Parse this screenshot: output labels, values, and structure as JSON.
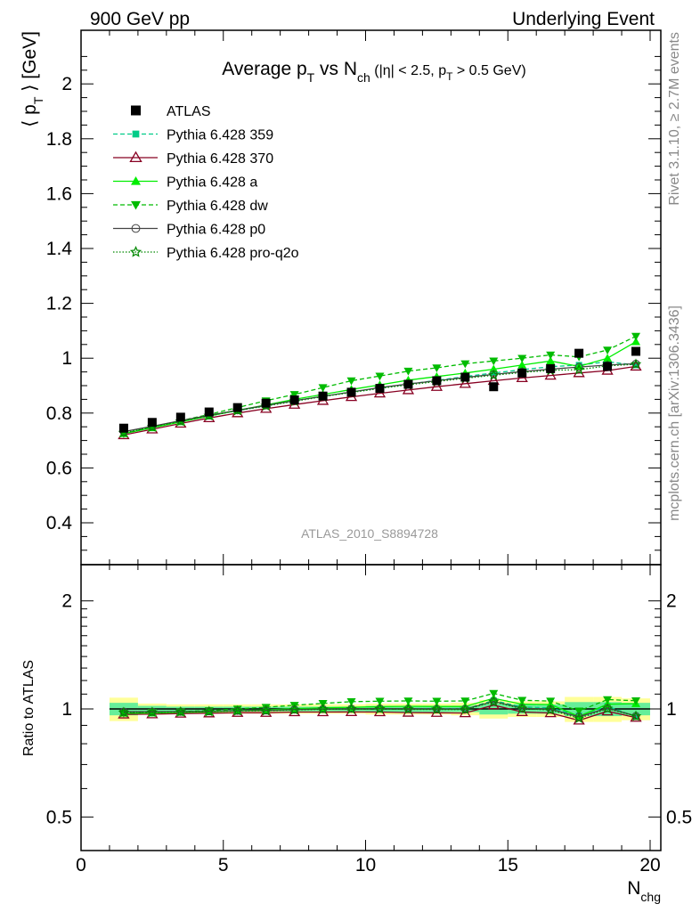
{
  "header": {
    "left": "900 GeV pp",
    "right": "Underlying Event"
  },
  "side": {
    "rivet": "Rivet 3.1.10, ≥ 2.7M events",
    "mcplots": "mcplots.cern.ch [arXiv:1306.3436]"
  },
  "chart_data": [
    {
      "type": "scatter",
      "panel": "main",
      "title": {
        "main": "Average p",
        "sub1": "T",
        "mid": " vs N",
        "sub2": "ch",
        "cond1": " (|η| < 2.5, p",
        "sub3": "T",
        "cond2": " > 0.5 GeV)"
      },
      "ylabel": {
        "pre": "⟨ p",
        "sub": "T",
        "post": " ⟩ [GeV]"
      },
      "ylim": [
        0.25,
        2.2
      ],
      "xlim": [
        0,
        20
      ],
      "yticks": [
        "0.4",
        "0.6",
        "0.8",
        "1",
        "1.2",
        "1.4",
        "1.6",
        "1.8",
        "2"
      ],
      "watermark": "ATLAS_2010_S8894728",
      "legend_position": "top-left",
      "x": [
        1.5,
        2.5,
        3.5,
        4.5,
        5.5,
        6.5,
        7.5,
        8.5,
        9.5,
        10.5,
        11.5,
        12.5,
        13.5,
        14.5,
        15.5,
        16.5,
        17.5,
        18.5,
        19.5
      ],
      "series": [
        {
          "name": "ATLAS",
          "color": "#000000",
          "marker": "square",
          "line": "none",
          "values": [
            0.745,
            0.766,
            0.785,
            0.804,
            0.82,
            0.836,
            0.848,
            0.862,
            0.876,
            0.89,
            0.905,
            0.918,
            0.931,
            0.896,
            0.946,
            0.962,
            1.018,
            0.97,
            1.025
          ]
        },
        {
          "name": "Pythia 6.428 359",
          "color": "#00cc88",
          "marker": "smallsquare",
          "line": "dashed",
          "values": [
            0.725,
            0.748,
            0.769,
            0.79,
            0.809,
            0.827,
            0.845,
            0.861,
            0.877,
            0.892,
            0.906,
            0.919,
            0.933,
            0.946,
            0.958,
            0.969,
            0.975,
            0.987,
            0.975
          ]
        },
        {
          "name": "Pythia 6.428 370",
          "color": "#880022",
          "marker": "triangle-open",
          "line": "solid",
          "values": [
            0.72,
            0.741,
            0.762,
            0.782,
            0.8,
            0.816,
            0.831,
            0.845,
            0.859,
            0.872,
            0.884,
            0.896,
            0.907,
            0.918,
            0.928,
            0.937,
            0.946,
            0.955,
            0.97
          ]
        },
        {
          "name": "Pythia 6.428 a",
          "color": "#00ee00",
          "marker": "triangle",
          "line": "solid",
          "values": [
            0.725,
            0.746,
            0.768,
            0.789,
            0.81,
            0.83,
            0.85,
            0.868,
            0.886,
            0.903,
            0.92,
            0.933,
            0.946,
            0.96,
            0.975,
            0.99,
            0.97,
            1.0,
            1.06
          ]
        },
        {
          "name": "Pythia 6.428 dw",
          "color": "#00bb00",
          "marker": "triangle-down",
          "line": "dashed",
          "values": [
            0.725,
            0.75,
            0.772,
            0.795,
            0.82,
            0.845,
            0.868,
            0.893,
            0.918,
            0.935,
            0.953,
            0.965,
            0.98,
            0.99,
            1.0,
            1.012,
            1.005,
            1.03,
            1.08
          ]
        },
        {
          "name": "Pythia 6.428 p0",
          "color": "#444444",
          "marker": "circle-open",
          "line": "solid",
          "values": [
            0.732,
            0.752,
            0.772,
            0.792,
            0.81,
            0.828,
            0.845,
            0.861,
            0.877,
            0.893,
            0.906,
            0.918,
            0.93,
            0.941,
            0.951,
            0.96,
            0.968,
            0.975,
            0.98
          ]
        },
        {
          "name": "Pythia 6.428 pro-q2o",
          "color": "#008800",
          "marker": "star-open",
          "line": "dotted",
          "values": [
            0.728,
            0.749,
            0.77,
            0.79,
            0.809,
            0.826,
            0.843,
            0.86,
            0.875,
            0.89,
            0.903,
            0.915,
            0.927,
            0.938,
            0.948,
            0.956,
            0.958,
            0.972,
            0.978
          ]
        }
      ]
    },
    {
      "type": "scatter",
      "panel": "ratio",
      "ylabel": "Ratio to ATLAS",
      "xlabel": {
        "main": "N",
        "sub": "chg"
      },
      "ylog": true,
      "ylim": [
        0.4,
        2.4
      ],
      "xlim": [
        0,
        20
      ],
      "xticks": [
        "0",
        "5",
        "10",
        "15",
        "20"
      ],
      "yticks": [
        "0.5",
        "1",
        "2"
      ],
      "x": [
        1.5,
        2.5,
        3.5,
        4.5,
        5.5,
        6.5,
        7.5,
        8.5,
        9.5,
        10.5,
        11.5,
        12.5,
        13.5,
        14.5,
        15.5,
        16.5,
        17.5,
        18.5,
        19.5
      ],
      "reference_band": {
        "outer_color": "#ffff99",
        "inner_color": "#66ee99",
        "outer_halfwidth": [
          0.075,
          0.035,
          0.03,
          0.03,
          0.03,
          0.03,
          0.03,
          0.03,
          0.03,
          0.035,
          0.035,
          0.035,
          0.04,
          0.06,
          0.05,
          0.05,
          0.08,
          0.08,
          0.07
        ],
        "inner_halfwidth": [
          0.04,
          0.02,
          0.015,
          0.015,
          0.015,
          0.015,
          0.015,
          0.015,
          0.015,
          0.02,
          0.02,
          0.02,
          0.02,
          0.035,
          0.03,
          0.03,
          0.045,
          0.045,
          0.04
        ]
      },
      "series": [
        {
          "name": "Pythia 6.428 359",
          "color": "#00cc88",
          "marker": "smallsquare",
          "line": "dashed",
          "values": [
            0.973,
            0.976,
            0.98,
            0.983,
            0.987,
            0.989,
            0.996,
            0.999,
            1.001,
            1.002,
            1.001,
            1.001,
            1.002,
            1.056,
            1.013,
            1.007,
            0.958,
            1.018,
            0.951
          ]
        },
        {
          "name": "Pythia 6.428 370",
          "color": "#880022",
          "marker": "triangle-open",
          "line": "solid",
          "values": [
            0.966,
            0.967,
            0.971,
            0.973,
            0.976,
            0.976,
            0.98,
            0.98,
            0.981,
            0.98,
            0.977,
            0.976,
            0.974,
            1.025,
            0.981,
            0.974,
            0.929,
            0.985,
            0.946
          ]
        },
        {
          "name": "Pythia 6.428 a",
          "color": "#00ee00",
          "marker": "triangle",
          "line": "solid",
          "values": [
            0.973,
            0.974,
            0.978,
            0.981,
            0.988,
            0.993,
            1.002,
            1.007,
            1.011,
            1.015,
            1.017,
            1.016,
            1.016,
            1.071,
            1.031,
            1.029,
            0.953,
            1.031,
            1.034
          ]
        },
        {
          "name": "Pythia 6.428 dw",
          "color": "#00bb00",
          "marker": "triangle-down",
          "line": "dashed",
          "values": [
            0.973,
            0.979,
            0.983,
            0.989,
            1.0,
            1.011,
            1.024,
            1.036,
            1.048,
            1.051,
            1.053,
            1.051,
            1.053,
            1.105,
            1.057,
            1.052,
            0.987,
            1.062,
            1.054
          ]
        },
        {
          "name": "Pythia 6.428 p0",
          "color": "#444444",
          "marker": "circle-open",
          "line": "solid",
          "values": [
            0.983,
            0.982,
            0.983,
            0.985,
            0.988,
            0.99,
            0.996,
            0.999,
            1.001,
            1.003,
            1.001,
            1.0,
            0.999,
            1.05,
            1.005,
            0.998,
            0.951,
            1.005,
            0.956
          ]
        },
        {
          "name": "Pythia 6.428 pro-q2o",
          "color": "#008800",
          "marker": "star-open",
          "line": "dotted",
          "values": [
            0.977,
            0.978,
            0.981,
            0.983,
            0.987,
            0.988,
            0.994,
            0.998,
            0.999,
            1.0,
            0.998,
            0.997,
            0.996,
            1.047,
            1.002,
            0.994,
            0.941,
            1.002,
            0.954
          ]
        }
      ]
    }
  ]
}
